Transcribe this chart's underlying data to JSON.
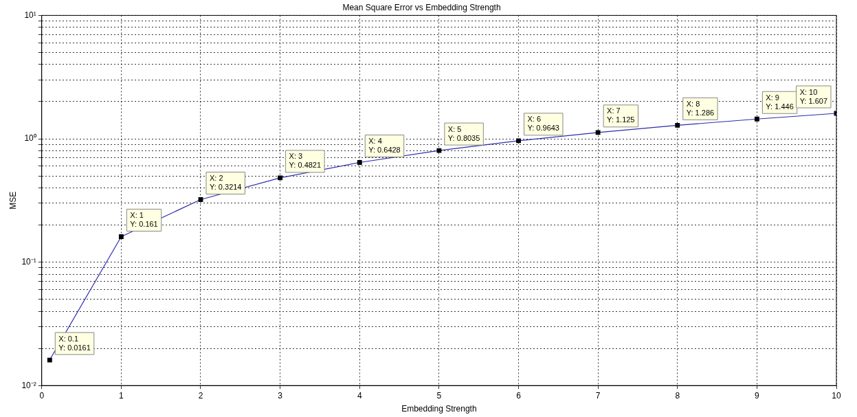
{
  "chart_data": {
    "type": "line",
    "title": "Mean Square Error vs Embedding Strength",
    "xlabel": "Embedding Strength",
    "ylabel": "MSE",
    "x": [
      0.1,
      1,
      2,
      3,
      4,
      5,
      6,
      7,
      8,
      9,
      10
    ],
    "series": [
      {
        "color": "#2b2bb0",
        "values": [
          0.0161,
          0.161,
          0.3214,
          0.4821,
          0.6428,
          0.8035,
          0.9643,
          1.125,
          1.286,
          1.446,
          1.607
        ]
      }
    ],
    "xlim": [
      0,
      10
    ],
    "xticks": [
      0,
      1,
      2,
      3,
      4,
      5,
      6,
      7,
      8,
      9,
      10
    ],
    "ylim": [
      0.01,
      10
    ],
    "yticks": [
      {
        "value": 0.01,
        "label": "10⁻²"
      },
      {
        "value": 0.02,
        "label": null
      },
      {
        "value": 0.03,
        "label": null
      },
      {
        "value": 0.04,
        "label": null
      },
      {
        "value": 0.05,
        "label": null
      },
      {
        "value": 0.06,
        "label": null
      },
      {
        "value": 0.07,
        "label": null
      },
      {
        "value": 0.08,
        "label": null
      },
      {
        "value": 0.09,
        "label": null
      },
      {
        "value": 0.1,
        "label": "10⁻¹"
      },
      {
        "value": 0.2,
        "label": null
      },
      {
        "value": 0.3,
        "label": null
      },
      {
        "value": 0.4,
        "label": null
      },
      {
        "value": 0.5,
        "label": null
      },
      {
        "value": 0.6,
        "label": null
      },
      {
        "value": 0.7,
        "label": null
      },
      {
        "value": 0.8,
        "label": null
      },
      {
        "value": 0.9,
        "label": null
      },
      {
        "value": 1,
        "label": "10⁰"
      },
      {
        "value": 2,
        "label": null
      },
      {
        "value": 3,
        "label": null
      },
      {
        "value": 4,
        "label": null
      },
      {
        "value": 5,
        "label": null
      },
      {
        "value": 6,
        "label": null
      },
      {
        "value": 7,
        "label": null
      },
      {
        "value": 8,
        "label": null
      },
      {
        "value": 9,
        "label": null
      },
      {
        "value": 10,
        "label": "10¹"
      }
    ],
    "log": true,
    "grid": true,
    "line_style": "solid",
    "marker": "square",
    "annotations": [
      {
        "text": "X: 0.1\nY: 0.0161",
        "x": 0.1,
        "y": 0.0161
      },
      {
        "text": "X: 1\nY: 0.161",
        "x": 1,
        "y": 0.161
      },
      {
        "text": "X: 2\nY: 0.3214",
        "x": 2,
        "y": 0.3214
      },
      {
        "text": "X: 3\nY: 0.4821",
        "x": 3,
        "y": 0.4821
      },
      {
        "text": "X: 4\nY: 0.6428",
        "x": 4,
        "y": 0.6428
      },
      {
        "text": "X: 5\nY: 0.8035",
        "x": 5,
        "y": 0.8035
      },
      {
        "text": "X: 6\nY: 0.9643",
        "x": 6,
        "y": 0.9643
      },
      {
        "text": "X: 7\nY: 1.125",
        "x": 7,
        "y": 1.125
      },
      {
        "text": "X: 8\nY: 1.286",
        "x": 8,
        "y": 1.286
      },
      {
        "text": "X: 9\nY: 1.446",
        "x": 9,
        "y": 1.446
      },
      {
        "text": "X: 10\nY: 1.607",
        "x": 10,
        "y": 1.607
      }
    ]
  }
}
